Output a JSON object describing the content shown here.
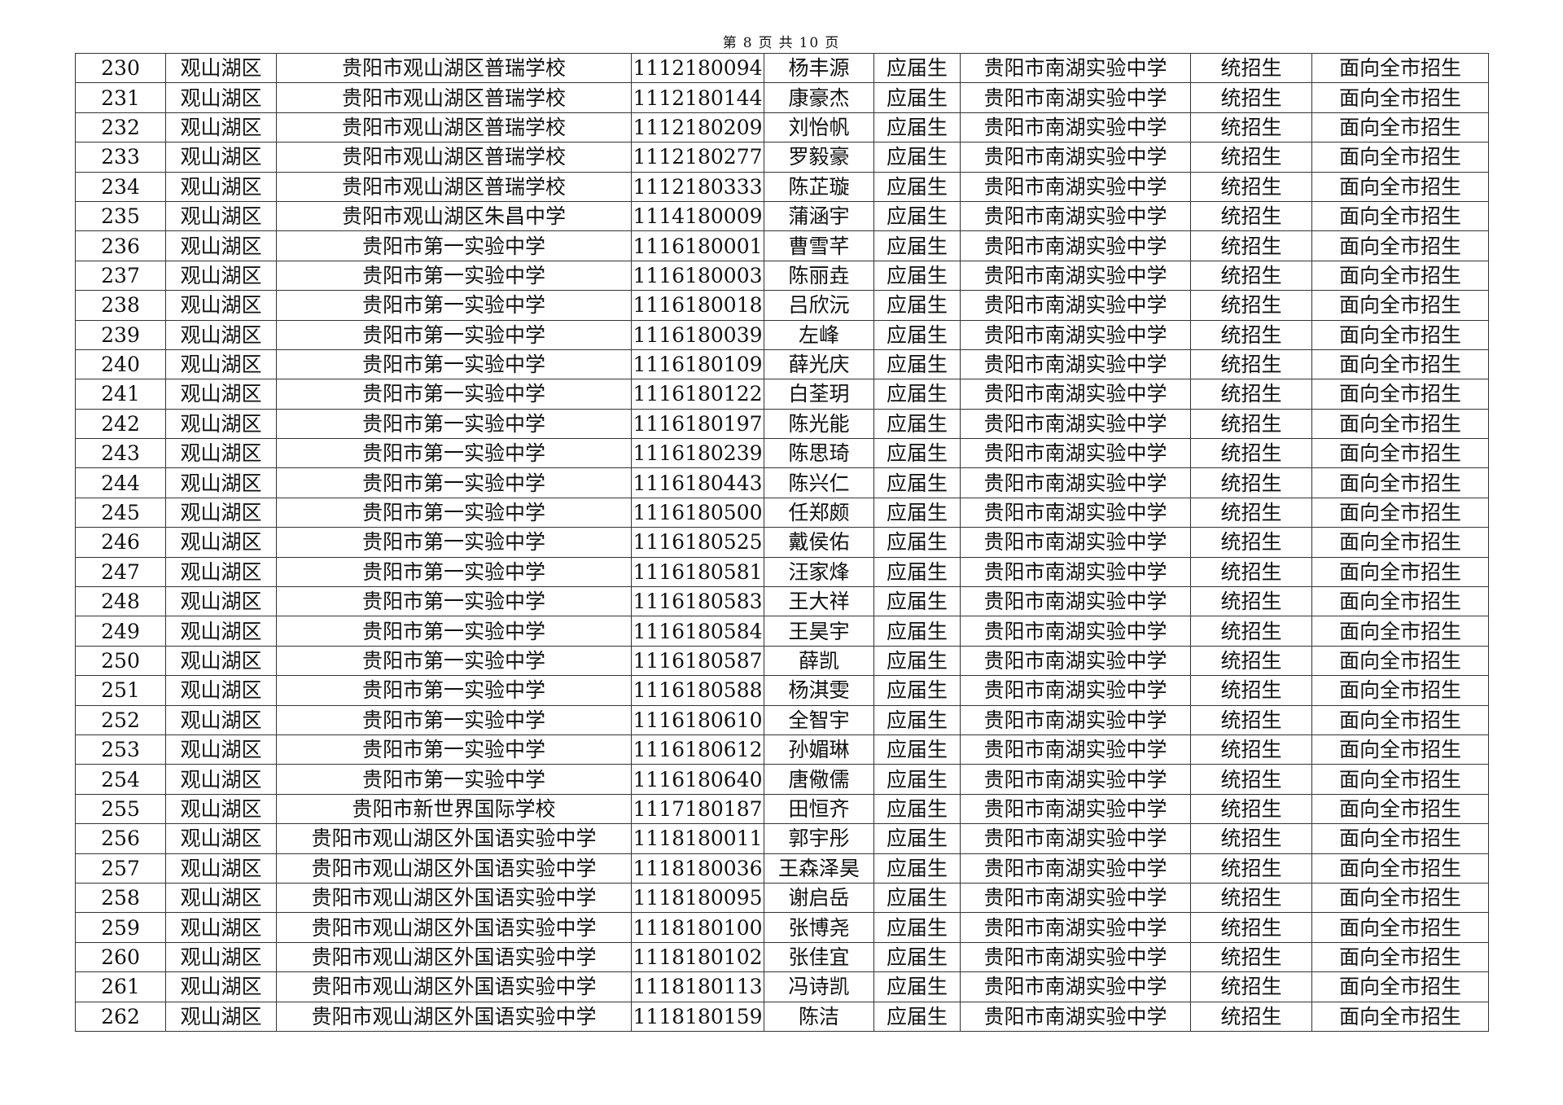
{
  "page_header": {
    "prefix": "第",
    "current": "8",
    "mid1": "页",
    "mid2": "共",
    "total": "10",
    "suffix": "页"
  },
  "rows": [
    [
      "230",
      "观山湖区",
      "贵阳市观山湖区普瑞学校",
      "1112180094",
      "杨丰源",
      "应届生",
      "贵阳市南湖实验中学",
      "统招生",
      "面向全市招生"
    ],
    [
      "231",
      "观山湖区",
      "贵阳市观山湖区普瑞学校",
      "1112180144",
      "康豪杰",
      "应届生",
      "贵阳市南湖实验中学",
      "统招生",
      "面向全市招生"
    ],
    [
      "232",
      "观山湖区",
      "贵阳市观山湖区普瑞学校",
      "1112180209",
      "刘怡帆",
      "应届生",
      "贵阳市南湖实验中学",
      "统招生",
      "面向全市招生"
    ],
    [
      "233",
      "观山湖区",
      "贵阳市观山湖区普瑞学校",
      "1112180277",
      "罗毅豪",
      "应届生",
      "贵阳市南湖实验中学",
      "统招生",
      "面向全市招生"
    ],
    [
      "234",
      "观山湖区",
      "贵阳市观山湖区普瑞学校",
      "1112180333",
      "陈芷璇",
      "应届生",
      "贵阳市南湖实验中学",
      "统招生",
      "面向全市招生"
    ],
    [
      "235",
      "观山湖区",
      "贵阳市观山湖区朱昌中学",
      "1114180009",
      "蒲涵宇",
      "应届生",
      "贵阳市南湖实验中学",
      "统招生",
      "面向全市招生"
    ],
    [
      "236",
      "观山湖区",
      "贵阳市第一实验中学",
      "1116180001",
      "曹雪芊",
      "应届生",
      "贵阳市南湖实验中学",
      "统招生",
      "面向全市招生"
    ],
    [
      "237",
      "观山湖区",
      "贵阳市第一实验中学",
      "1116180003",
      "陈丽垚",
      "应届生",
      "贵阳市南湖实验中学",
      "统招生",
      "面向全市招生"
    ],
    [
      "238",
      "观山湖区",
      "贵阳市第一实验中学",
      "1116180018",
      "吕欣沅",
      "应届生",
      "贵阳市南湖实验中学",
      "统招生",
      "面向全市招生"
    ],
    [
      "239",
      "观山湖区",
      "贵阳市第一实验中学",
      "1116180039",
      "左峰",
      "应届生",
      "贵阳市南湖实验中学",
      "统招生",
      "面向全市招生"
    ],
    [
      "240",
      "观山湖区",
      "贵阳市第一实验中学",
      "1116180109",
      "薛光庆",
      "应届生",
      "贵阳市南湖实验中学",
      "统招生",
      "面向全市招生"
    ],
    [
      "241",
      "观山湖区",
      "贵阳市第一实验中学",
      "1116180122",
      "白荃玥",
      "应届生",
      "贵阳市南湖实验中学",
      "统招生",
      "面向全市招生"
    ],
    [
      "242",
      "观山湖区",
      "贵阳市第一实验中学",
      "1116180197",
      "陈光能",
      "应届生",
      "贵阳市南湖实验中学",
      "统招生",
      "面向全市招生"
    ],
    [
      "243",
      "观山湖区",
      "贵阳市第一实验中学",
      "1116180239",
      "陈思琦",
      "应届生",
      "贵阳市南湖实验中学",
      "统招生",
      "面向全市招生"
    ],
    [
      "244",
      "观山湖区",
      "贵阳市第一实验中学",
      "1116180443",
      "陈兴仁",
      "应届生",
      "贵阳市南湖实验中学",
      "统招生",
      "面向全市招生"
    ],
    [
      "245",
      "观山湖区",
      "贵阳市第一实验中学",
      "1116180500",
      "任郑颇",
      "应届生",
      "贵阳市南湖实验中学",
      "统招生",
      "面向全市招生"
    ],
    [
      "246",
      "观山湖区",
      "贵阳市第一实验中学",
      "1116180525",
      "戴侯佑",
      "应届生",
      "贵阳市南湖实验中学",
      "统招生",
      "面向全市招生"
    ],
    [
      "247",
      "观山湖区",
      "贵阳市第一实验中学",
      "1116180581",
      "汪家烽",
      "应届生",
      "贵阳市南湖实验中学",
      "统招生",
      "面向全市招生"
    ],
    [
      "248",
      "观山湖区",
      "贵阳市第一实验中学",
      "1116180583",
      "王大祥",
      "应届生",
      "贵阳市南湖实验中学",
      "统招生",
      "面向全市招生"
    ],
    [
      "249",
      "观山湖区",
      "贵阳市第一实验中学",
      "1116180584",
      "王昊宇",
      "应届生",
      "贵阳市南湖实验中学",
      "统招生",
      "面向全市招生"
    ],
    [
      "250",
      "观山湖区",
      "贵阳市第一实验中学",
      "1116180587",
      "薛凯",
      "应届生",
      "贵阳市南湖实验中学",
      "统招生",
      "面向全市招生"
    ],
    [
      "251",
      "观山湖区",
      "贵阳市第一实验中学",
      "1116180588",
      "杨淇雯",
      "应届生",
      "贵阳市南湖实验中学",
      "统招生",
      "面向全市招生"
    ],
    [
      "252",
      "观山湖区",
      "贵阳市第一实验中学",
      "1116180610",
      "全智宇",
      "应届生",
      "贵阳市南湖实验中学",
      "统招生",
      "面向全市招生"
    ],
    [
      "253",
      "观山湖区",
      "贵阳市第一实验中学",
      "1116180612",
      "孙媚琳",
      "应届生",
      "贵阳市南湖实验中学",
      "统招生",
      "面向全市招生"
    ],
    [
      "254",
      "观山湖区",
      "贵阳市第一实验中学",
      "1116180640",
      "唐儆儒",
      "应届生",
      "贵阳市南湖实验中学",
      "统招生",
      "面向全市招生"
    ],
    [
      "255",
      "观山湖区",
      "贵阳市新世界国际学校",
      "1117180187",
      "田恒齐",
      "应届生",
      "贵阳市南湖实验中学",
      "统招生",
      "面向全市招生"
    ],
    [
      "256",
      "观山湖区",
      "贵阳市观山湖区外国语实验中学",
      "1118180011",
      "郭宇彤",
      "应届生",
      "贵阳市南湖实验中学",
      "统招生",
      "面向全市招生"
    ],
    [
      "257",
      "观山湖区",
      "贵阳市观山湖区外国语实验中学",
      "1118180036",
      "王森泽昊",
      "应届生",
      "贵阳市南湖实验中学",
      "统招生",
      "面向全市招生"
    ],
    [
      "258",
      "观山湖区",
      "贵阳市观山湖区外国语实验中学",
      "1118180095",
      "谢启岳",
      "应届生",
      "贵阳市南湖实验中学",
      "统招生",
      "面向全市招生"
    ],
    [
      "259",
      "观山湖区",
      "贵阳市观山湖区外国语实验中学",
      "1118180100",
      "张博尧",
      "应届生",
      "贵阳市南湖实验中学",
      "统招生",
      "面向全市招生"
    ],
    [
      "260",
      "观山湖区",
      "贵阳市观山湖区外国语实验中学",
      "1118180102",
      "张佳宜",
      "应届生",
      "贵阳市南湖实验中学",
      "统招生",
      "面向全市招生"
    ],
    [
      "261",
      "观山湖区",
      "贵阳市观山湖区外国语实验中学",
      "1118180113",
      "冯诗凯",
      "应届生",
      "贵阳市南湖实验中学",
      "统招生",
      "面向全市招生"
    ],
    [
      "262",
      "观山湖区",
      "贵阳市观山湖区外国语实验中学",
      "1118180159",
      "陈洁",
      "应届生",
      "贵阳市南湖实验中学",
      "统招生",
      "面向全市招生"
    ]
  ]
}
